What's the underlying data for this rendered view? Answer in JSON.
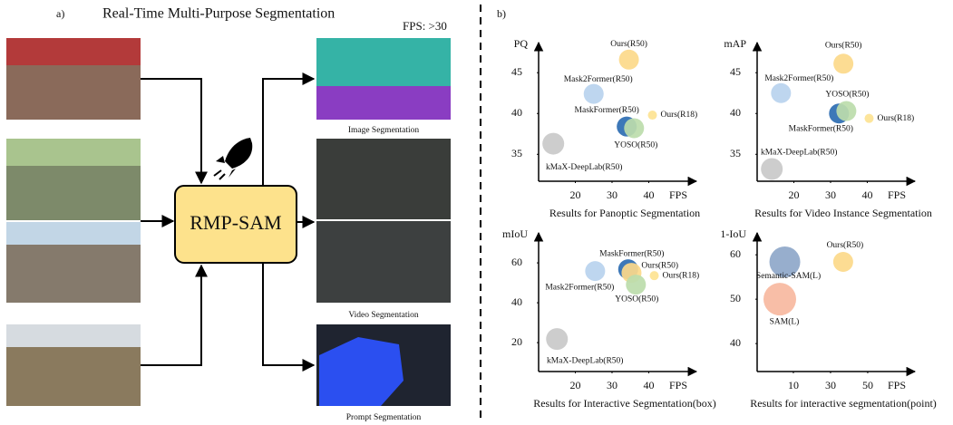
{
  "diagram": {
    "label": "a)",
    "title": "Real-Time Multi-Purpose Segmentation",
    "fps_note": "FPS: >30",
    "model": "RMP-SAM",
    "outputs": [
      "Image Segmentation",
      "Video Segmentation",
      "Prompt Segmentation"
    ]
  },
  "charts_label": "b)",
  "chart_data": [
    {
      "type": "scatter",
      "title": "Results for Panoptic Segmentation",
      "y_label": "PQ",
      "x_label": "FPS",
      "xlim": [
        10,
        51
      ],
      "ylim": [
        31.7,
        47.8
      ],
      "xticks": [
        20,
        30,
        40
      ],
      "yticks": [
        35,
        40,
        45
      ],
      "series": [
        {
          "name": "Ours(R50)",
          "color": "#fcd98a",
          "x": [
            34.6
          ],
          "values": [
            46.6
          ]
        },
        {
          "name": "Mask2Former(R50)",
          "color": "#b8d2ee",
          "x": [
            25
          ],
          "values": [
            42.4
          ]
        },
        {
          "name": "MaskFormer(R50)",
          "color": "#2d6cb2",
          "x": [
            34
          ],
          "values": [
            38.4
          ]
        },
        {
          "name": "YOSO(R50)",
          "color": "#bcdcab",
          "x": [
            36
          ],
          "values": [
            38.2
          ]
        },
        {
          "name": "Ours(R18)",
          "color": "#fde392",
          "x": [
            41
          ],
          "values": [
            39.8
          ]
        },
        {
          "name": "kMaX-DeepLab(R50)",
          "color": "#c9c9c9",
          "x": [
            14
          ],
          "values": [
            36.3
          ]
        }
      ]
    },
    {
      "type": "scatter",
      "title": "Results for Video Instance Segmentation",
      "y_label": "mAP",
      "x_label": "FPS",
      "xlim": [
        10,
        51
      ],
      "ylim": [
        31.7,
        47.8
      ],
      "xticks": [
        20,
        30,
        40
      ],
      "yticks": [
        35,
        40,
        45
      ],
      "series": [
        {
          "name": "Ours(R50)",
          "color": "#fcd98a",
          "x": [
            33.5
          ],
          "values": [
            46.1
          ]
        },
        {
          "name": "Mask2Former(R50)",
          "color": "#b8d2ee",
          "x": [
            16.5
          ],
          "values": [
            42.5
          ]
        },
        {
          "name": "MaskFormer(R50)",
          "color": "#2d6cb2",
          "x": [
            32.3
          ],
          "values": [
            40
          ]
        },
        {
          "name": "YOSO(R50)",
          "color": "#bcdcab",
          "x": [
            34.3
          ],
          "values": [
            40.3
          ]
        },
        {
          "name": "Ours(R18)",
          "color": "#fde392",
          "x": [
            40.5
          ],
          "values": [
            39.4
          ]
        },
        {
          "name": "kMaX-DeepLab(R50)",
          "color": "#c9c9c9",
          "x": [
            14
          ],
          "values": [
            33.2
          ]
        }
      ]
    },
    {
      "type": "scatter",
      "title": "Results for Interactive Segmentation(box)",
      "y_label": "mIoU",
      "x_label": "FPS",
      "xlim": [
        10,
        51
      ],
      "ylim": [
        5.5,
        71.4
      ],
      "xticks": [
        20,
        30,
        40
      ],
      "yticks": [
        20,
        40,
        60
      ],
      "series": [
        {
          "name": "MaskFormer(R50)",
          "color": "#2d6cb2",
          "x": [
            34.4
          ],
          "values": [
            56.8
          ]
        },
        {
          "name": "Ours(R50)",
          "color": "#fcd98a",
          "x": [
            35.3
          ],
          "values": [
            55
          ]
        },
        {
          "name": "Mask2Former(R50)",
          "color": "#b8d2ee",
          "x": [
            25.4
          ],
          "values": [
            55.9
          ]
        },
        {
          "name": "YOSO(R50)",
          "color": "#bcdcab",
          "x": [
            36.5
          ],
          "values": [
            49.1
          ]
        },
        {
          "name": "Ours(R18)",
          "color": "#fde392",
          "x": [
            41.5
          ],
          "values": [
            53.6
          ]
        },
        {
          "name": "kMaX-DeepLab(R50)",
          "color": "#c9c9c9",
          "x": [
            15
          ],
          "values": [
            21.8
          ]
        }
      ]
    },
    {
      "type": "scatter",
      "title": "Results for interactive segmentation(point)",
      "y_label": "1-IoU",
      "x_label": "FPS",
      "xlim": [
        -9.5,
        71.5
      ],
      "ylim": [
        33.7,
        63.3
      ],
      "xticks": [
        10,
        30,
        50
      ],
      "yticks": [
        40,
        50,
        60
      ],
      "series": [
        {
          "name": "Ours(R50)",
          "color": "#fcd98a",
          "x": [
            36.8
          ],
          "values": [
            58.4
          ]
        },
        {
          "name": "Semantic-SAM(L)",
          "color": "#8ea7c9",
          "x": [
            5.4
          ],
          "values": [
            58.4
          ]
        },
        {
          "name": "SAM(L)",
          "color": "#f7b9a0",
          "x": [
            2.7
          ],
          "values": [
            50
          ]
        }
      ]
    }
  ]
}
